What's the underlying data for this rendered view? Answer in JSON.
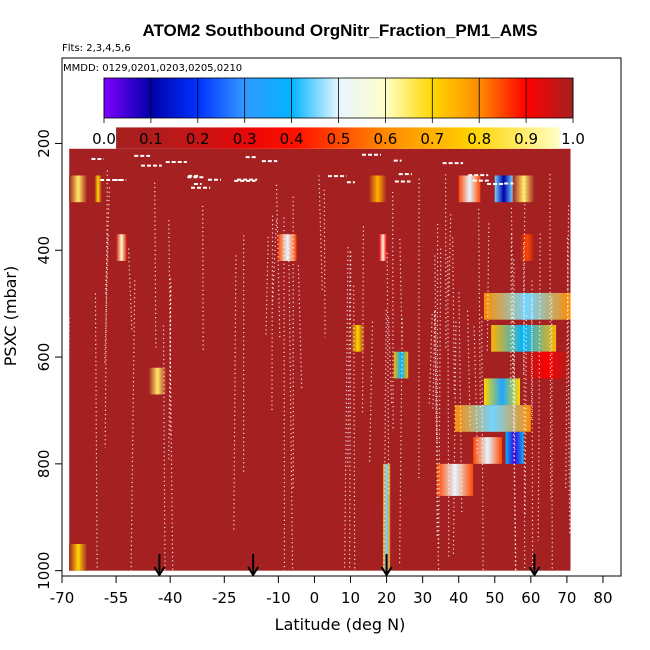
{
  "chart_data": {
    "type": "heatmap",
    "title": "ATOM2 Southbound OrgNitr_Fraction_PM1_AMS",
    "flights_label": "Flts: 2,3,4,5,6",
    "dates_label": "MMDD: 0129,0201,0203,0205,0210",
    "xlabel": "Latitude (deg N)",
    "ylabel": "PSXC (mbar)",
    "x_ticks": [
      "-70",
      "-55",
      "-40",
      "-25",
      "-10",
      "0",
      "10",
      "20",
      "30",
      "40",
      "50",
      "60",
      "70",
      "80"
    ],
    "y_ticks": [
      "200",
      "400",
      "600",
      "800",
      "1000"
    ],
    "xlim": [
      -70,
      85
    ],
    "ylim": [
      1010,
      40
    ],
    "colorbar": {
      "ticks": [
        "0.0",
        "0.1",
        "0.2",
        "0.3",
        "0.4",
        "0.5",
        "0.6",
        "0.7",
        "0.8",
        "0.9",
        "1.0"
      ],
      "range": [
        0,
        1
      ],
      "stops": [
        {
          "v": 0.0,
          "c": "#7f00ff"
        },
        {
          "v": 0.1,
          "c": "#0000aa"
        },
        {
          "v": 0.2,
          "c": "#0033ff"
        },
        {
          "v": 0.3,
          "c": "#3399ff"
        },
        {
          "v": 0.4,
          "c": "#00b4ff"
        },
        {
          "v": 0.5,
          "c": "#e6f6ff"
        },
        {
          "v": 0.6,
          "c": "#ffffc8"
        },
        {
          "v": 0.7,
          "c": "#ffd700"
        },
        {
          "v": 0.8,
          "c": "#ff8c00"
        },
        {
          "v": 0.9,
          "c": "#ff0000"
        },
        {
          "v": 1.0,
          "c": "#a52020"
        }
      ]
    },
    "background_value": 1.0,
    "data_extent": {
      "lat": [
        -68,
        71
      ],
      "p_top": 210,
      "p_bottom": 1000
    },
    "features": [
      {
        "lat": [
          -55,
          68
        ],
        "p": [
          170,
          210
        ],
        "v": [
          1.0,
          0.6
        ],
        "kind": "gradient"
      },
      {
        "lat": [
          -68,
          -63
        ],
        "p": [
          260,
          310
        ],
        "v": 0.65
      },
      {
        "lat": [
          -61,
          -59
        ],
        "p": [
          260,
          310
        ],
        "v": 0.7
      },
      {
        "lat": [
          -55,
          -52
        ],
        "p": [
          370,
          420
        ],
        "v": 0.6
      },
      {
        "lat": [
          -46,
          -41
        ],
        "p": [
          620,
          670
        ],
        "v": 0.65
      },
      {
        "lat": [
          -68,
          -63
        ],
        "p": [
          950,
          1000
        ],
        "v": 0.7
      },
      {
        "lat": [
          -10,
          -5
        ],
        "p": [
          370,
          420
        ],
        "v": 0.5
      },
      {
        "lat": [
          10,
          14
        ],
        "p": [
          540,
          590
        ],
        "v": 0.7
      },
      {
        "lat": [
          15,
          20
        ],
        "p": [
          260,
          310
        ],
        "v": 0.75
      },
      {
        "lat": [
          18,
          20
        ],
        "p": [
          370,
          420
        ],
        "v": 0.55
      },
      {
        "lat": [
          40,
          46
        ],
        "p": [
          260,
          310
        ],
        "v": 0.5
      },
      {
        "lat": [
          50,
          55
        ],
        "p": [
          260,
          310
        ],
        "v": 0.1
      },
      {
        "lat": [
          55,
          61
        ],
        "p": [
          260,
          310
        ],
        "v": 0.65
      },
      {
        "lat": [
          57,
          61
        ],
        "p": [
          370,
          420
        ],
        "v": 0.85
      },
      {
        "lat": [
          47,
          71
        ],
        "p": [
          480,
          530
        ],
        "v": 0.45
      },
      {
        "lat": [
          49,
          67
        ],
        "p": [
          540,
          590
        ],
        "v": 0.4
      },
      {
        "lat": [
          58,
          71
        ],
        "p": [
          590,
          640
        ],
        "v": 0.9
      },
      {
        "lat": [
          47,
          57
        ],
        "p": [
          640,
          690
        ],
        "v": 0.35
      },
      {
        "lat": [
          39,
          60
        ],
        "p": [
          690,
          740
        ],
        "v": 0.45
      },
      {
        "lat": [
          44,
          52
        ],
        "p": [
          750,
          800
        ],
        "v": 0.5
      },
      {
        "lat": [
          34,
          44
        ],
        "p": [
          800,
          860
        ],
        "v": 0.5
      },
      {
        "lat": [
          53,
          58
        ],
        "p": [
          740,
          800
        ],
        "v": 0.05
      },
      {
        "lat": [
          22,
          26
        ],
        "p": [
          590,
          640
        ],
        "v": 0.4
      },
      {
        "lat": [
          19,
          21
        ],
        "p": [
          800,
          1000
        ],
        "v": 0.45
      }
    ],
    "annotations": {
      "arrows_lat": [
        -43,
        -17,
        20,
        61
      ]
    }
  }
}
